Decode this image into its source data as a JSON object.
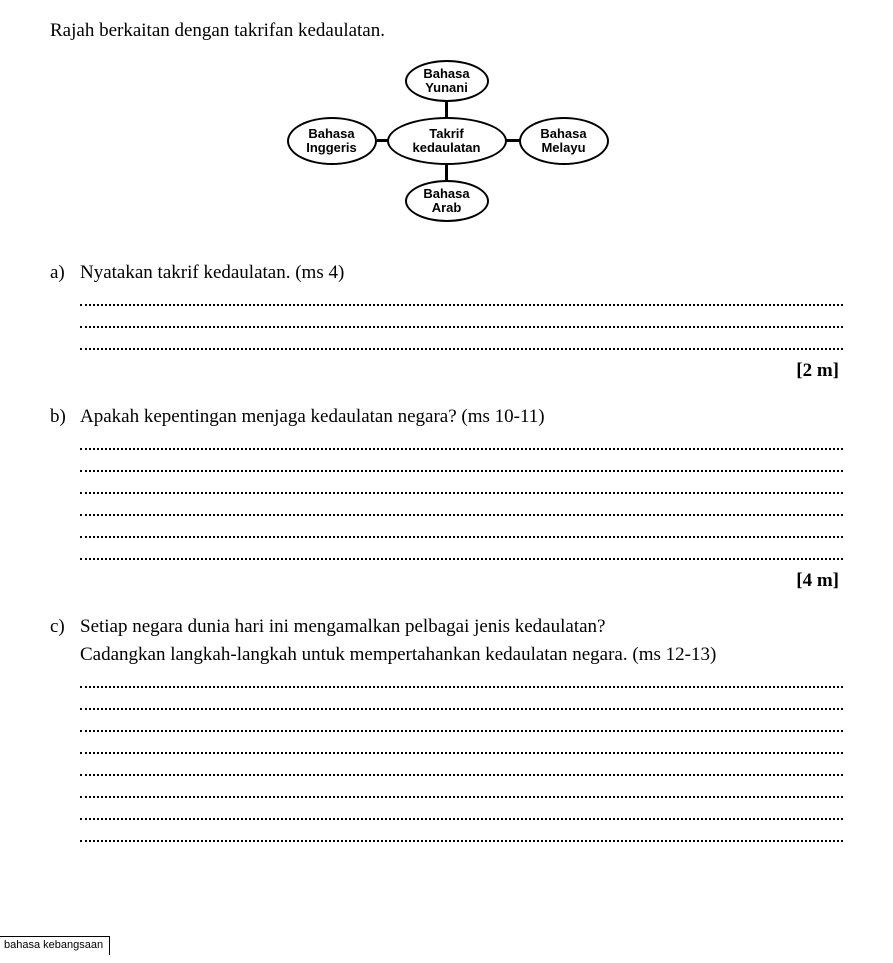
{
  "intro": "Rajah berkaitan dengan takrifan kedaulatan.",
  "diagram": {
    "center_line1": "Takrif",
    "center_line2": "kedaulatan",
    "top_line1": "Bahasa",
    "top_line2": "Yunani",
    "bottom_line1": "Bahasa",
    "bottom_line2": "Arab",
    "left_line1": "Bahasa",
    "left_line2": "Inggeris",
    "right_line1": "Bahasa",
    "right_line2": "Melayu"
  },
  "questions": {
    "a": {
      "label": "a)",
      "text": "Nyatakan takrif kedaulatan. (ms 4)",
      "lines": 3,
      "marks": "[2 m]"
    },
    "b": {
      "label": "b)",
      "text": "Apakah kepentingan menjaga kedaulatan negara? (ms 10-11)",
      "lines": 6,
      "marks": "[4 m]"
    },
    "c": {
      "label": "c)",
      "text1": "Setiap negara dunia hari ini mengamalkan pelbagai jenis kedaulatan?",
      "text2": "Cadangkan langkah-langkah untuk mempertahankan kedaulatan negara. (ms 12-13)",
      "lines": 8
    }
  },
  "footer": "bahasa kebangsaan"
}
